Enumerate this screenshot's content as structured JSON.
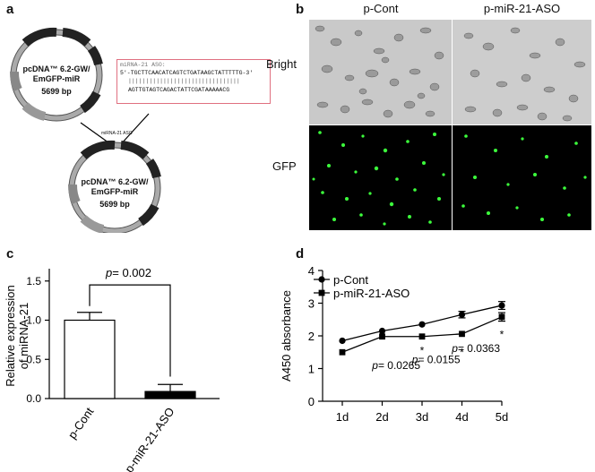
{
  "panels": {
    "a": {
      "letter": "a",
      "plasmid_top": {
        "name_line1": "pcDNA™ 6.2-GW/",
        "name_line2": "EmGFP-miR",
        "size": "5699 bp",
        "features": [
          "P CMV",
          "TK pA",
          "f1 ori",
          "P SV40",
          "EM7",
          "Bla",
          "pUC ori",
          "SV40 pA",
          "Spect"
        ]
      },
      "insert_box": {
        "title": "miRNA-21 ASO:",
        "seq_top": "5'-TGCTTCAACATCAGTCTGATAAGCTATTTTTG-3'",
        "bars": "||||||||||||||||||||||||||||||||",
        "seq_bottom": "AGTTGTAGTCAGACTATTCGATAAAAACG"
      },
      "insert_label": "miRNA-21 ASO",
      "plasmid_bottom": {
        "name_line1": "pcDNA™ 6.2-GW/",
        "name_line2": "EmGFP-miR",
        "size": "5699 bp"
      }
    },
    "b": {
      "letter": "b",
      "columns": [
        "p-Cont",
        "p-miR-21-ASO"
      ],
      "rows": [
        "Bright",
        "GFP"
      ]
    },
    "c": {
      "letter": "c",
      "chart_data": {
        "type": "bar",
        "categories": [
          "p-Cont",
          "p-miR-21-ASO"
        ],
        "values": [
          1.0,
          0.09
        ],
        "errors": [
          0.1,
          0.09
        ],
        "bar_fills": [
          "#ffffff",
          "#000000"
        ],
        "ylabel_line1": "Relative expression",
        "ylabel_line2": "of miRNA-21",
        "ylim": [
          0,
          1.6
        ],
        "yticks": [
          "0.0",
          "0.5",
          "1.0",
          "1.5"
        ],
        "annotation_p": "p",
        "annotation_value": "= 0.002"
      }
    },
    "d": {
      "letter": "d",
      "chart_data": {
        "type": "line",
        "categories": [
          "1d",
          "2d",
          "3d",
          "4d",
          "5d"
        ],
        "series": [
          {
            "name": "p-Cont",
            "marker": "circle",
            "values": [
              1.85,
              2.15,
              2.35,
              2.65,
              2.93
            ],
            "errors": [
              0.0,
              0.0,
              0.0,
              0.1,
              0.12
            ]
          },
          {
            "name": "p-miR-21-ASO",
            "marker": "square",
            "values": [
              1.5,
              1.98,
              1.98,
              2.06,
              2.58
            ],
            "errors": [
              0.0,
              0.0,
              0.0,
              0.0,
              0.13
            ]
          }
        ],
        "ylabel": "A450 absorbance",
        "ylim": [
          0,
          4
        ],
        "yticks": [
          "0",
          "1",
          "2",
          "3",
          "4"
        ],
        "annotations": [
          {
            "x": "3d",
            "star_y": 1.6,
            "p": "p",
            "text": "= 0.0265",
            "text_y": 1.12
          },
          {
            "x": "4d",
            "star_y": 1.55,
            "p": "p",
            "text": "= 0.0155",
            "text_y": 1.3
          },
          {
            "x": "5d",
            "star_y": 2.1,
            "p": "p",
            "text": "= 0.0363",
            "text_y": 1.65
          }
        ],
        "star": "*"
      }
    }
  }
}
